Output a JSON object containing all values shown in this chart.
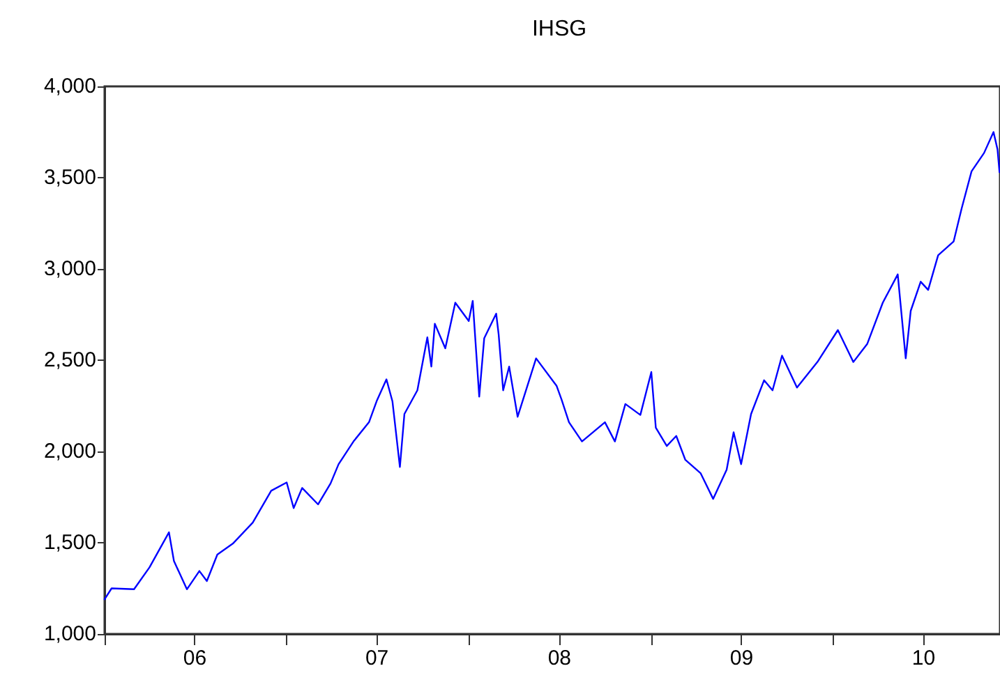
{
  "chart_data": {
    "type": "line",
    "title": "IHSG",
    "x": [
      "2006-01-01",
      "2006-01-15",
      "2006-03-01",
      "2006-04-01",
      "2006-05-10",
      "2006-05-20",
      "2006-06-15",
      "2006-07-10",
      "2006-07-25",
      "2006-08-15",
      "2006-09-15",
      "2006-10-25",
      "2006-12-01",
      "2007-01-01",
      "2007-01-15",
      "2007-02-01",
      "2007-03-05",
      "2007-03-30",
      "2007-04-15",
      "2007-05-15",
      "2007-06-15",
      "2007-07-01",
      "2007-07-20",
      "2007-08-01",
      "2007-08-16",
      "2007-08-25",
      "2007-09-20",
      "2007-10-10",
      "2007-10-18",
      "2007-10-25",
      "2007-11-15",
      "2007-12-05",
      "2008-01-01",
      "2008-01-09",
      "2008-01-22",
      "2008-02-01",
      "2008-02-25",
      "2008-03-01",
      "2008-03-10",
      "2008-03-22",
      "2008-04-08",
      "2008-05-15",
      "2008-06-25",
      "2008-07-05",
      "2008-07-20",
      "2008-08-15",
      "2008-09-30",
      "2008-10-20",
      "2008-11-10",
      "2008-12-10",
      "2009-01-01",
      "2009-01-10",
      "2009-02-01",
      "2009-02-20",
      "2009-03-10",
      "2009-04-10",
      "2009-05-05",
      "2009-06-01",
      "2009-06-15",
      "2009-06-30",
      "2009-07-20",
      "2009-08-15",
      "2009-09-01",
      "2009-09-20",
      "2009-10-20",
      "2009-11-30",
      "2010-01-10",
      "2010-02-10",
      "2010-03-10",
      "2010-04-10",
      "2010-05-10",
      "2010-05-26",
      "2010-06-05",
      "2010-06-25",
      "2010-07-10",
      "2010-07-30",
      "2010-08-30",
      "2010-09-15",
      "2010-10-05",
      "2010-10-30",
      "2010-11-18",
      "2010-11-26",
      "2010-11-30"
    ],
    "series": [
      {
        "color": "#0000ff",
        "values": [
          1190,
          1250,
          1245,
          1365,
          1557,
          1400,
          1245,
          1345,
          1290,
          1435,
          1495,
          1610,
          1785,
          1830,
          1690,
          1800,
          1710,
          1825,
          1930,
          2055,
          2160,
          2280,
          2395,
          2275,
          1915,
          2205,
          2335,
          2625,
          2465,
          2700,
          2565,
          2815,
          2715,
          2825,
          2300,
          2620,
          2755,
          2640,
          2335,
          2465,
          2190,
          2510,
          2360,
          2285,
          2160,
          2055,
          2160,
          2055,
          2260,
          2200,
          2435,
          2130,
          2030,
          2085,
          1955,
          1880,
          1740,
          1900,
          2105,
          1930,
          2205,
          2390,
          2335,
          2525,
          2350,
          2490,
          2665,
          2490,
          2590,
          2815,
          2970,
          2510,
          2770,
          2930,
          2885,
          3075,
          3150,
          3330,
          3535,
          3635,
          3750,
          3655,
          3530
        ]
      }
    ],
    "xlim": [
      "2006-01-01",
      "2010-12-01"
    ],
    "xticks": [
      {
        "value": "2006-01-01",
        "label": null
      },
      {
        "value": "2006-07-01",
        "label": "06"
      },
      {
        "value": "2007-01-01",
        "label": null
      },
      {
        "value": "2007-07-01",
        "label": "07"
      },
      {
        "value": "2008-01-01",
        "label": null
      },
      {
        "value": "2008-07-01",
        "label": "08"
      },
      {
        "value": "2009-01-01",
        "label": null
      },
      {
        "value": "2009-07-01",
        "label": "09"
      },
      {
        "value": "2010-01-01",
        "label": null
      },
      {
        "value": "2010-07-01",
        "label": "10"
      }
    ],
    "ylim": [
      1000,
      4000
    ],
    "yticks": [
      {
        "value": 1000,
        "label": "1,000"
      },
      {
        "value": 1500,
        "label": "1,500"
      },
      {
        "value": 2000,
        "label": "2,000"
      },
      {
        "value": 2500,
        "label": "2,500"
      },
      {
        "value": 3000,
        "label": "3,000"
      },
      {
        "value": 3500,
        "label": "3,500"
      },
      {
        "value": 4000,
        "label": "4,000"
      }
    ],
    "grid": false,
    "legend": false,
    "marker": "none",
    "line_style": "solid"
  }
}
